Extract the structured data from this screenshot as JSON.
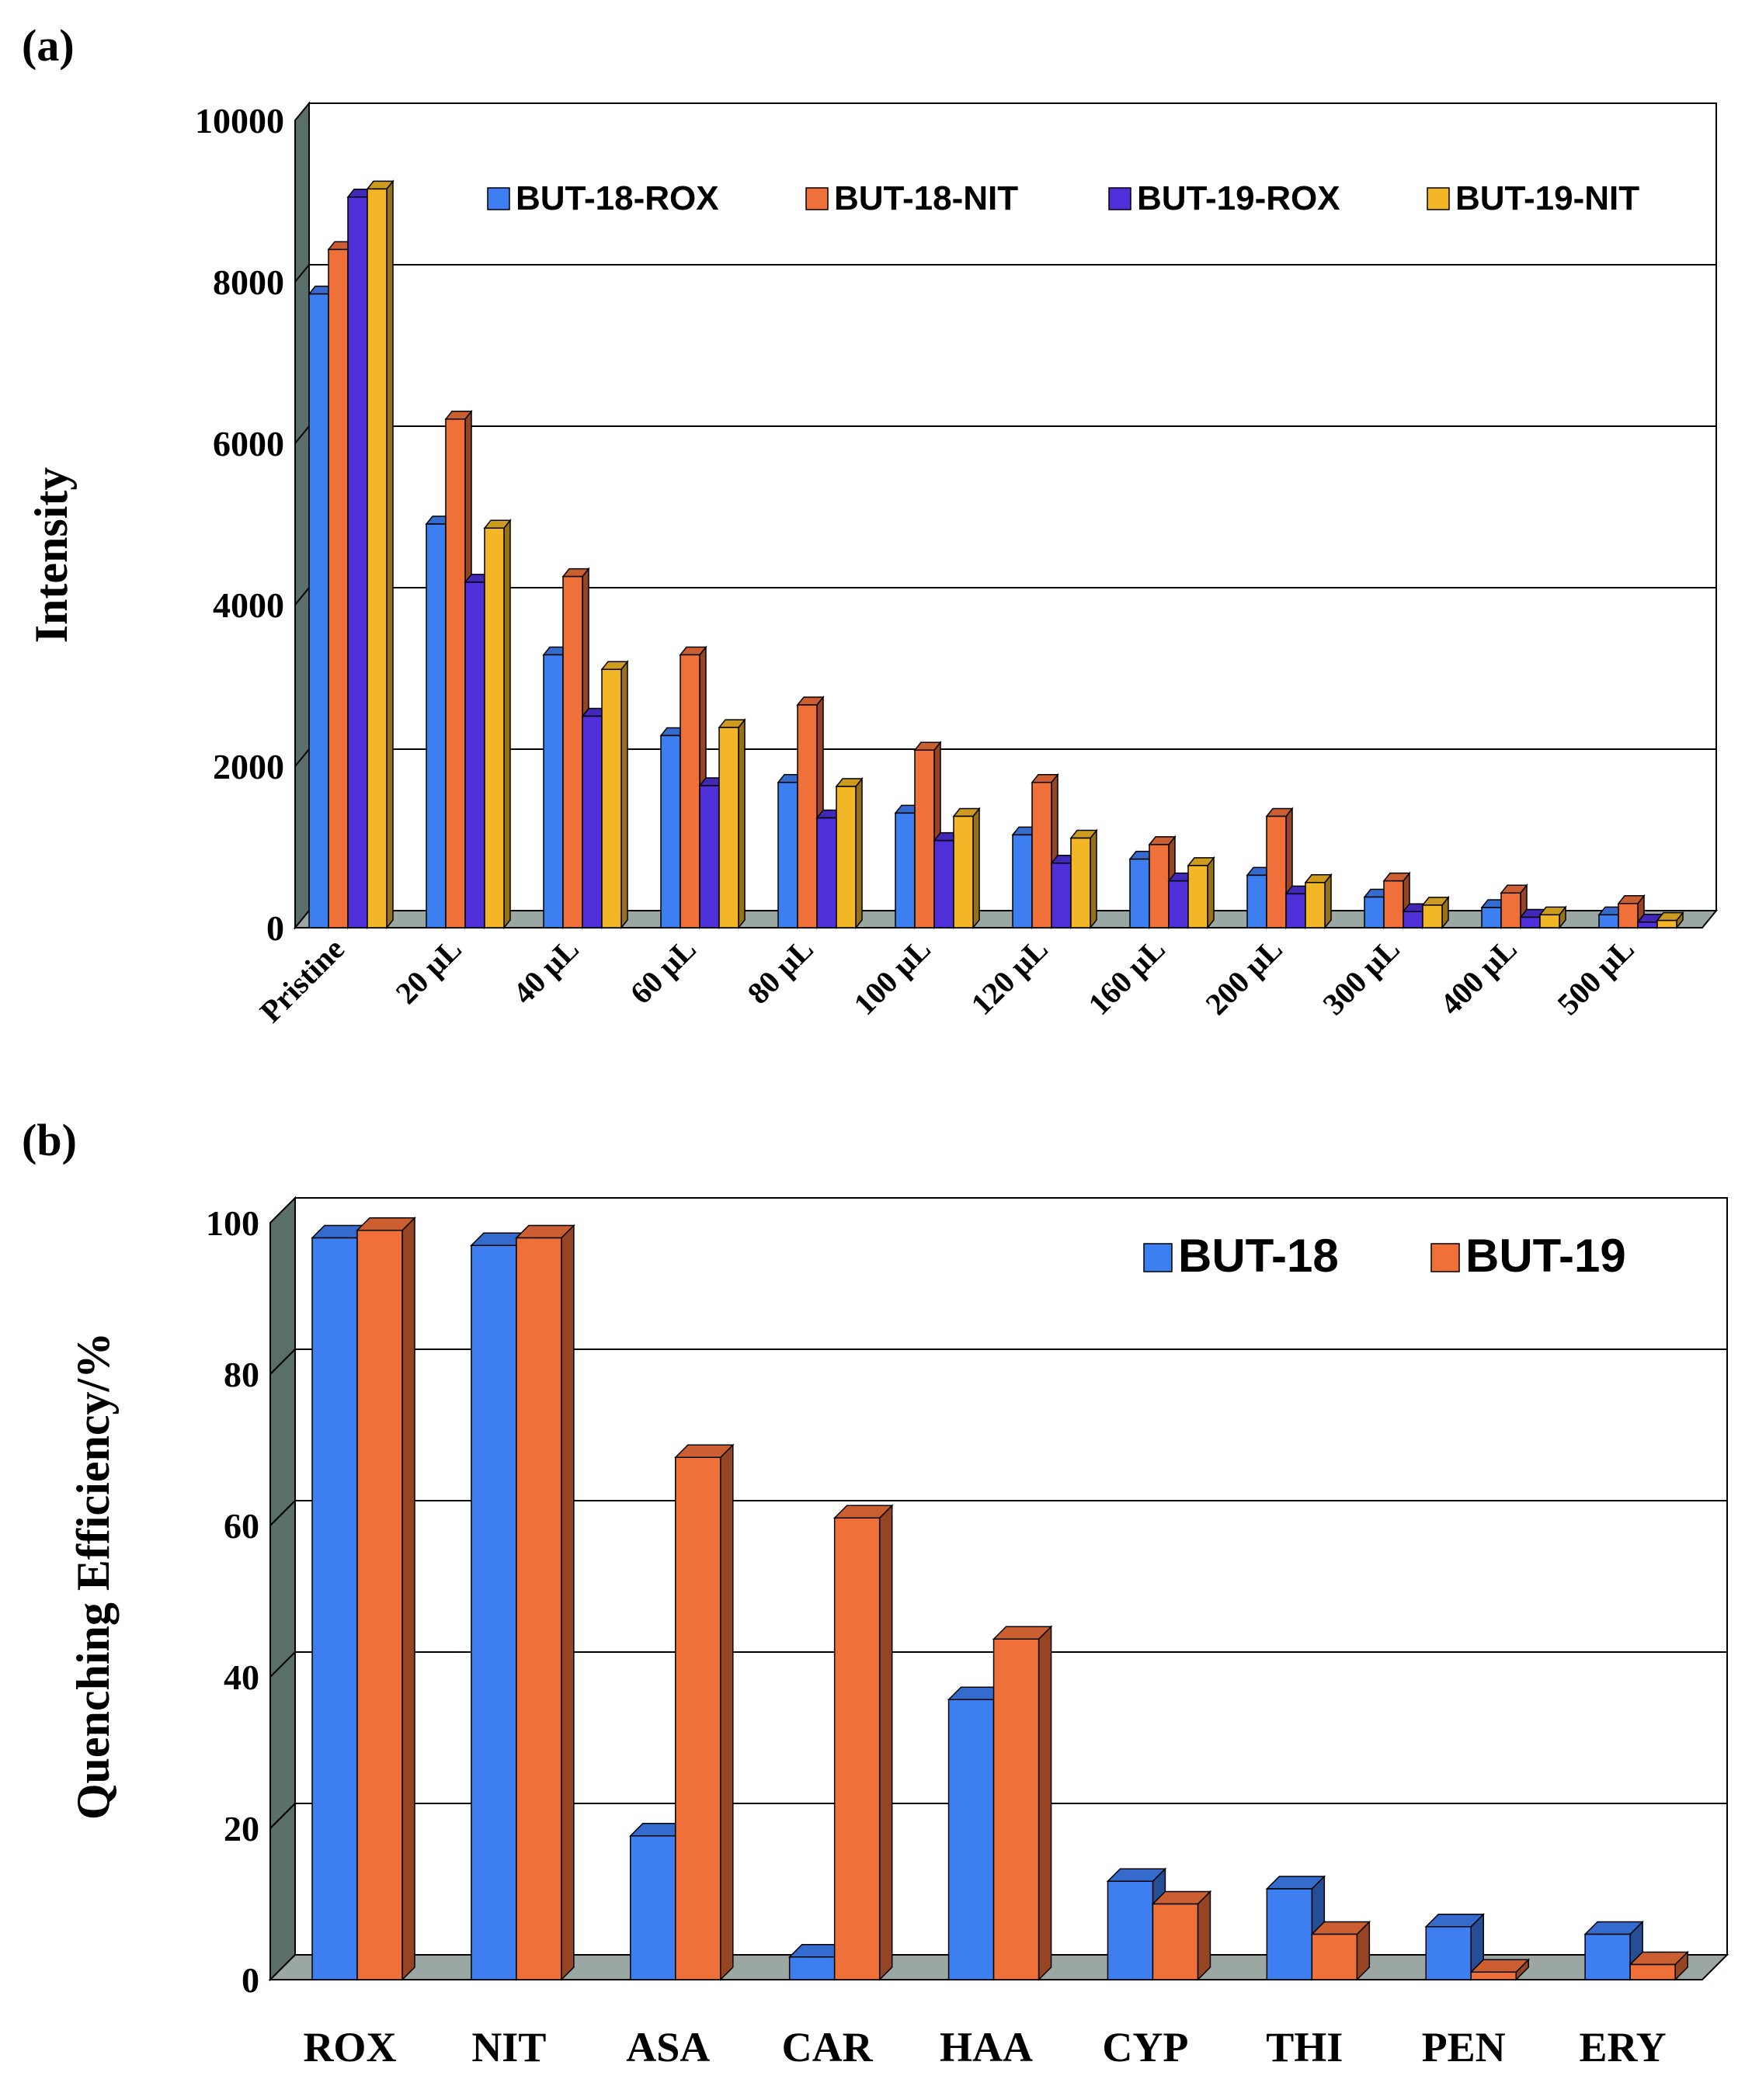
{
  "colors": {
    "blue": "#3D7EF0",
    "orange": "#F0703A",
    "purple": "#4E2FD8",
    "yellow": "#F2B627",
    "wall": "#5A6E6A",
    "floor": "#9AA7A2",
    "grid": "#000000"
  },
  "chart_data": [
    {
      "panel_label": "(a)",
      "type": "bar",
      "title": "",
      "xlabel": "",
      "ylabel": "Intensity",
      "ylim": [
        0,
        10000
      ],
      "yticks": [
        "0",
        "2000",
        "4000",
        "6000",
        "8000",
        "10000"
      ],
      "grid": true,
      "legend_position": "top-right",
      "categories": [
        "Pristine",
        "20 µL",
        "40 µL",
        "60 µL",
        "80 µL",
        "100 µL",
        "120 µL",
        "160 µL",
        "200 µL",
        "300 µL",
        "400 µL",
        "500 µL"
      ],
      "series": [
        {
          "name": "BUT-18-ROX",
          "color_key": "blue",
          "values": [
            7850,
            5000,
            3380,
            2380,
            1800,
            1420,
            1150,
            850,
            650,
            380,
            250,
            160
          ]
        },
        {
          "name": "BUT-18-NIT",
          "color_key": "orange",
          "values": [
            8400,
            6300,
            4350,
            3380,
            2760,
            2200,
            1800,
            1030,
            1380,
            580,
            430,
            300
          ]
        },
        {
          "name": "BUT-19-ROX",
          "color_key": "purple",
          "values": [
            9050,
            4280,
            2620,
            1760,
            1360,
            1080,
            800,
            580,
            420,
            200,
            130,
            70
          ]
        },
        {
          "name": "BUT-19-NIT",
          "color_key": "yellow",
          "values": [
            9150,
            4950,
            3200,
            2480,
            1750,
            1380,
            1110,
            770,
            560,
            280,
            160,
            90
          ]
        }
      ]
    },
    {
      "panel_label": "(b)",
      "type": "bar",
      "title": "",
      "xlabel": "",
      "ylabel": "Quenching Efficiency/%",
      "ylim": [
        0,
        100
      ],
      "yticks": [
        "0",
        "20",
        "40",
        "60",
        "80",
        "100"
      ],
      "grid": true,
      "legend_position": "top-right",
      "categories": [
        "ROX",
        "NIT",
        "ASA",
        "CAR",
        "HAA",
        "CYP",
        "THI",
        "PEN",
        "ERY"
      ],
      "series": [
        {
          "name": "BUT-18",
          "color_key": "blue",
          "values": [
            98,
            97,
            19,
            3,
            37,
            13,
            12,
            7,
            6
          ]
        },
        {
          "name": "BUT-19",
          "color_key": "orange",
          "values": [
            99,
            98,
            69,
            61,
            45,
            10,
            6,
            1,
            2
          ]
        }
      ]
    }
  ]
}
